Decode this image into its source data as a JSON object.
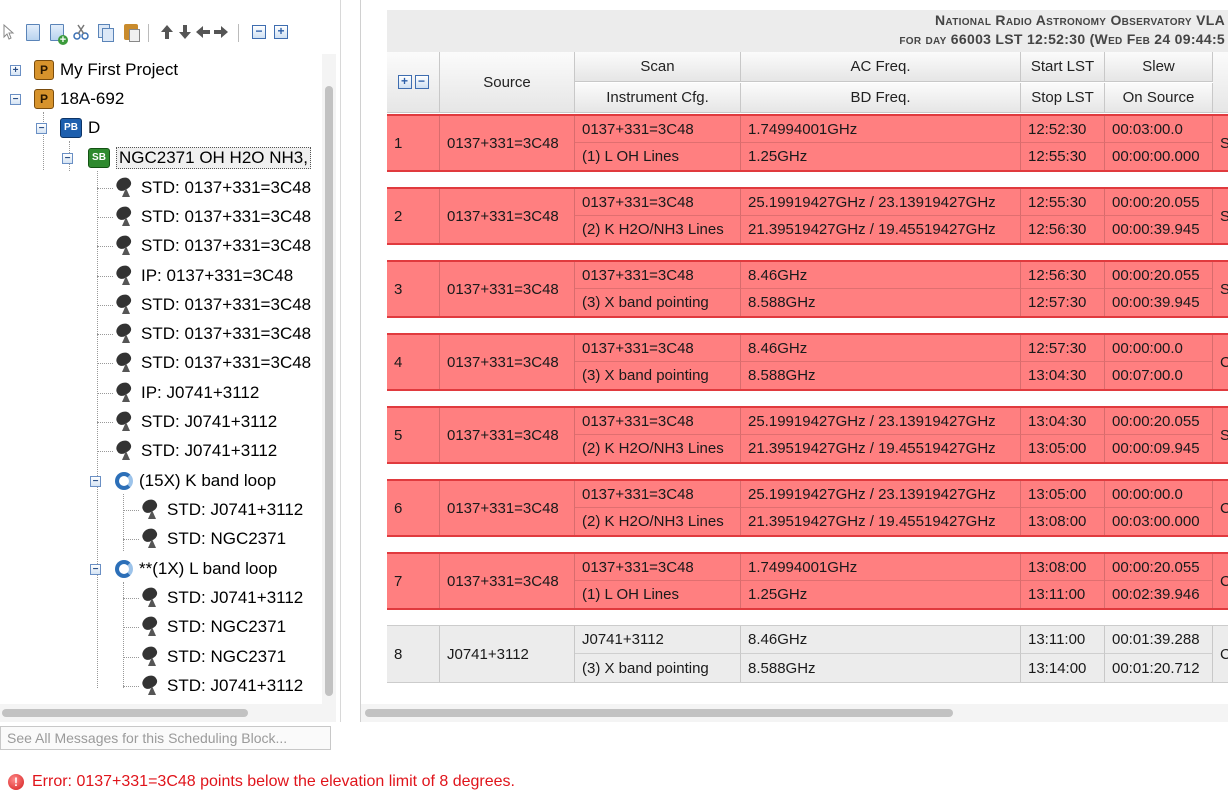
{
  "toolbar": {
    "icons": [
      "pointer-icon",
      "new-document-icon",
      "add-document-icon",
      "cut-icon",
      "copy-icon",
      "paste-icon",
      "move-up-icon",
      "move-down-icon",
      "move-left-icon",
      "move-right-icon",
      "collapse-all-icon",
      "expand-all-icon"
    ]
  },
  "tree": {
    "nodes": [
      {
        "label": "My First Project",
        "icon": "project-icon",
        "icon_text": "P"
      },
      {
        "label": "18A-692",
        "icon": "project-icon",
        "icon_text": "P"
      },
      {
        "label": "D",
        "icon": "program-block-icon",
        "icon_text": "PB"
      },
      {
        "label": "NGC2371 OH H2O NH3,",
        "icon": "scheduling-block-icon",
        "icon_text": "SB",
        "selected": true
      },
      {
        "label": "STD: 0137+331=3C48",
        "icon": "antenna-dish-icon"
      },
      {
        "label": "STD: 0137+331=3C48",
        "icon": "antenna-dish-icon"
      },
      {
        "label": "STD: 0137+331=3C48",
        "icon": "antenna-dish-icon"
      },
      {
        "label": "IP: 0137+331=3C48",
        "icon": "antenna-dish-icon"
      },
      {
        "label": "STD: 0137+331=3C48",
        "icon": "antenna-dish-icon"
      },
      {
        "label": "STD: 0137+331=3C48",
        "icon": "antenna-dish-icon"
      },
      {
        "label": "STD: 0137+331=3C48",
        "icon": "antenna-dish-icon"
      },
      {
        "label": "IP: J0741+3112",
        "icon": "antenna-dish-icon"
      },
      {
        "label": "STD: J0741+3112",
        "icon": "antenna-dish-icon"
      },
      {
        "label": "STD: J0741+3112",
        "icon": "antenna-dish-icon"
      },
      {
        "label": "(15X) K band loop",
        "icon": "loop-icon"
      },
      {
        "label": "STD: J0741+3112",
        "icon": "antenna-dish-icon"
      },
      {
        "label": "STD: NGC2371",
        "icon": "antenna-dish-icon"
      },
      {
        "label": "**(1X) L band loop",
        "icon": "loop-icon"
      },
      {
        "label": "STD: J0741+3112",
        "icon": "antenna-dish-icon"
      },
      {
        "label": "STD: NGC2371",
        "icon": "antenna-dish-icon"
      },
      {
        "label": "STD: NGC2371",
        "icon": "antenna-dish-icon"
      },
      {
        "label": "STD: J0741+3112",
        "icon": "antenna-dish-icon"
      }
    ]
  },
  "header": {
    "line1": "National Radio Astronomy Observatory VLA",
    "line2": "for day 66003 LST 12:52:30 (Wed Feb 24 09:44:5"
  },
  "columns": {
    "source": "Source",
    "scan": "Scan",
    "instrument": "Instrument Cfg.",
    "ac_freq": "AC Freq.",
    "bd_freq": "BD Freq.",
    "start_lst": "Start LST",
    "stop_lst": "Stop LST",
    "slew": "Slew",
    "on_source": "On Source"
  },
  "rows": [
    {
      "num": "1",
      "source": "0137+331=3C48",
      "scan": "0137+331=3C48",
      "instrument": "(1) L OH Lines",
      "ac_freq": "1.74994001GHz",
      "bd_freq": "1.25GHz",
      "start": "12:52:30",
      "stop": "12:55:30",
      "slew": "00:03:00.0",
      "on_source": "00:00:00.000",
      "extra": "S",
      "status": "error"
    },
    {
      "num": "2",
      "source": "0137+331=3C48",
      "scan": "0137+331=3C48",
      "instrument": "(2) K H2O/NH3 Lines",
      "ac_freq": "25.19919427GHz / 23.13919427GHz",
      "bd_freq": "21.39519427GHz / 19.45519427GHz",
      "start": "12:55:30",
      "stop": "12:56:30",
      "slew": "00:00:20.055",
      "on_source": "00:00:39.945",
      "extra": "S",
      "status": "error"
    },
    {
      "num": "3",
      "source": "0137+331=3C48",
      "scan": "0137+331=3C48",
      "instrument": "(3) X band pointing",
      "ac_freq": "8.46GHz",
      "bd_freq": "8.588GHz",
      "start": "12:56:30",
      "stop": "12:57:30",
      "slew": "00:00:20.055",
      "on_source": "00:00:39.945",
      "extra": "S",
      "status": "error"
    },
    {
      "num": "4",
      "source": "0137+331=3C48",
      "scan": "0137+331=3C48",
      "instrument": "(3) X band pointing",
      "ac_freq": "8.46GHz",
      "bd_freq": "8.588GHz",
      "start": "12:57:30",
      "stop": "13:04:30",
      "slew": "00:00:00.0",
      "on_source": "00:07:00.0",
      "extra": "C",
      "status": "error"
    },
    {
      "num": "5",
      "source": "0137+331=3C48",
      "scan": "0137+331=3C48",
      "instrument": "(2) K H2O/NH3 Lines",
      "ac_freq": "25.19919427GHz / 23.13919427GHz",
      "bd_freq": "21.39519427GHz / 19.45519427GHz",
      "start": "13:04:30",
      "stop": "13:05:00",
      "slew": "00:00:20.055",
      "on_source": "00:00:09.945",
      "extra": "S",
      "status": "error"
    },
    {
      "num": "6",
      "source": "0137+331=3C48",
      "scan": "0137+331=3C48",
      "instrument": "(2) K H2O/NH3 Lines",
      "ac_freq": "25.19919427GHz / 23.13919427GHz",
      "bd_freq": "21.39519427GHz / 19.45519427GHz",
      "start": "13:05:00",
      "stop": "13:08:00",
      "slew": "00:00:00.0",
      "on_source": "00:03:00.000",
      "extra": "C",
      "status": "error"
    },
    {
      "num": "7",
      "source": "0137+331=3C48",
      "scan": "0137+331=3C48",
      "instrument": "(1) L OH Lines",
      "ac_freq": "1.74994001GHz",
      "bd_freq": "1.25GHz",
      "start": "13:08:00",
      "stop": "13:11:00",
      "slew": "00:00:20.055",
      "on_source": "00:02:39.946",
      "extra": "C",
      "status": "error"
    },
    {
      "num": "8",
      "source": "J0741+3112",
      "scan": "J0741+3112",
      "instrument": "(3) X band pointing",
      "ac_freq": "8.46GHz",
      "bd_freq": "8.588GHz",
      "start": "13:11:00",
      "stop": "13:14:00",
      "slew": "00:01:39.288",
      "on_source": "00:01:20.712",
      "extra": "C",
      "status": "ok"
    }
  ],
  "messages_button": "See All Messages for this Scheduling Block...",
  "error": {
    "icon": "error-icon",
    "text": "Error: 0137+331=3C48 points below the elevation limit of 8 degrees."
  },
  "colors": {
    "error_row": "#ff7f80",
    "error_border": "#e03a3e",
    "error_text": "#e0141b",
    "ok_row": "#ececec"
  }
}
